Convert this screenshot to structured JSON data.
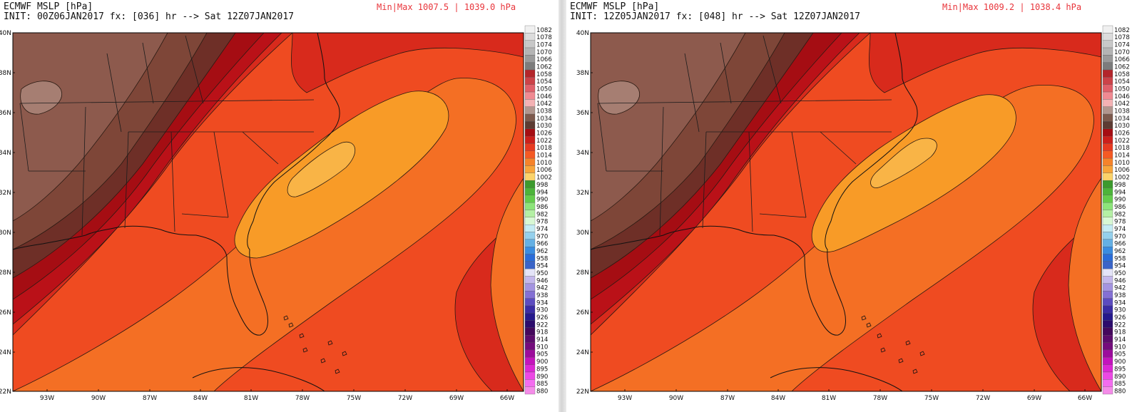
{
  "colors": {
    "c1002": "#f9b446",
    "c1006": "#f89b27",
    "c1010": "#f46f24",
    "c1014": "#ef4b21",
    "c1018": "#d82a1c",
    "c1022": "#ba1118",
    "c1026": "#a50d13",
    "c1030": "#6e2f27",
    "c1034": "#7e4638",
    "c1038": "#8d5a4d",
    "c1042": "#a67e72",
    "coast": "#111111",
    "border": "#1c1c1c",
    "contour": "#2a1a12"
  },
  "colorbar": {
    "labels": [
      "1082",
      "1078",
      "1074",
      "1070",
      "1066",
      "1062",
      "1058",
      "1054",
      "1050",
      "1046",
      "1042",
      "1038",
      "1034",
      "1030",
      "1026",
      "1022",
      "1018",
      "1014",
      "1010",
      "1006",
      "1002",
      "998",
      "994",
      "990",
      "986",
      "982",
      "978",
      "974",
      "970",
      "966",
      "962",
      "958",
      "954",
      "950",
      "946",
      "942",
      "938",
      "934",
      "930",
      "926",
      "922",
      "918",
      "914",
      "910",
      "905",
      "900",
      "895",
      "890",
      "885",
      "880"
    ],
    "colors": [
      "#f0f0f0",
      "#dcdcdc",
      "#c8c8c8",
      "#b4b4b4",
      "#9a9a9a",
      "#7c7c7c",
      "#b3262b",
      "#cc4248",
      "#e0606a",
      "#f08a92",
      "#f4b2b4",
      "#b1968e",
      "#7d5a4d",
      "#5c3b32",
      "#a50d13",
      "#cc1f1b",
      "#e83a20",
      "#f45a24",
      "#f6832a",
      "#f8a53a",
      "#fbd36a",
      "#3c9a2e",
      "#4cb43a",
      "#64cc4c",
      "#8ce47a",
      "#b4f0a4",
      "#d8f8d4",
      "#c4ecf4",
      "#94d0ec",
      "#64b0e4",
      "#3a8ce0",
      "#2a6cd8",
      "#3a64c8",
      "#e4e4f8",
      "#c4b8ec",
      "#a494e0",
      "#8470d4",
      "#5c4cc0",
      "#3a2ca4",
      "#24188c",
      "#2c0c6c",
      "#44085c",
      "#5c0c6c",
      "#740c7c",
      "#9c0c9c",
      "#c414bc",
      "#dc28d4",
      "#ec48e4",
      "#f46cf0",
      "#f48ce8"
    ]
  },
  "axes": {
    "lat_labels": [
      "40N",
      "38N",
      "36N",
      "34N",
      "32N",
      "30N",
      "28N",
      "26N",
      "24N",
      "22N"
    ],
    "lon_labels": [
      "93W",
      "90W",
      "87W",
      "84W",
      "81W",
      "78W",
      "75W",
      "72W",
      "69W",
      "66W"
    ]
  },
  "panels": [
    {
      "title": "ECMWF MSLP [hPa]",
      "init_line": "INIT: 00Z06JAN2017 fx: [036] hr --> Sat 12Z07JAN2017",
      "minmax": "Min|Max 1007.5 | 1039.0 hPa"
    },
    {
      "title": "ECMWF MSLP [hPa]",
      "init_line": "INIT: 12Z05JAN2017 fx: [048] hr --> Sat 12Z07JAN2017",
      "minmax": "Min|Max 1009.2 | 1038.4 hPa"
    }
  ]
}
